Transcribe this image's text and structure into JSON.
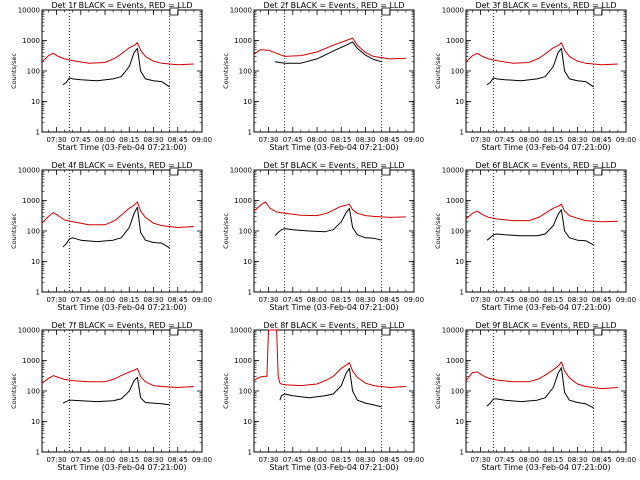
{
  "chart_data": [
    {
      "type": "line",
      "title": "Det 1f BLACK = Events, RED = LLD",
      "xlabel": "Start Time (03-Feb-04 07:21:00)",
      "ylabel": "Counts/sec",
      "yscale": "log",
      "ylim": [
        1,
        10000
      ],
      "x_ticks": [
        "07:30",
        "07:45",
        "08:00",
        "08:15",
        "08:30",
        "08:45",
        "09:00"
      ],
      "y_ticks": [
        "1",
        "10",
        "100",
        "1000",
        "10000"
      ],
      "markers": [
        "07:38",
        "08:40"
      ],
      "series": [
        {
          "color": "#cc0000",
          "x": [
            "07:21",
            "07:25",
            "07:28",
            "07:31",
            "07:35",
            "07:40",
            "07:50",
            "08:00",
            "08:06",
            "08:10",
            "08:15",
            "08:18",
            "08:20",
            "08:22",
            "08:25",
            "08:30",
            "08:35",
            "08:45",
            "08:55"
          ],
          "y": [
            200,
            320,
            380,
            300,
            250,
            220,
            180,
            190,
            260,
            360,
            580,
            680,
            850,
            480,
            300,
            210,
            180,
            160,
            170
          ]
        },
        {
          "color": "#000000",
          "x": [
            "07:34",
            "07:36",
            "07:38",
            "07:40",
            "07:45",
            "07:55",
            "08:05",
            "08:10",
            "08:15",
            "08:18",
            "08:20",
            "08:22",
            "08:25",
            "08:30",
            "08:35",
            "08:40"
          ],
          "y": [
            35,
            42,
            60,
            55,
            52,
            48,
            55,
            65,
            140,
            400,
            550,
            100,
            55,
            48,
            45,
            30
          ]
        }
      ]
    },
    {
      "type": "line",
      "title": "Det 2f BLACK = Events, RED = LLD",
      "xlabel": "Start Time (03-Feb-04 07:21:00)",
      "ylabel": "Counts/sec",
      "yscale": "log",
      "ylim": [
        1,
        10000
      ],
      "x_ticks": [
        "07:30",
        "07:45",
        "08:00",
        "08:15",
        "08:30",
        "08:45",
        "09:00"
      ],
      "y_ticks": [
        "1",
        "10",
        "100",
        "1000",
        "10000"
      ],
      "markers": [
        "07:40",
        "08:40"
      ],
      "series": [
        {
          "color": "#cc0000",
          "x": [
            "07:21",
            "07:25",
            "07:30",
            "07:35",
            "07:40",
            "07:50",
            "08:00",
            "08:10",
            "08:18",
            "08:22",
            "08:25",
            "08:30",
            "08:35",
            "08:45",
            "08:55"
          ],
          "y": [
            350,
            500,
            480,
            380,
            300,
            320,
            420,
            700,
            1000,
            1200,
            700,
            400,
            300,
            250,
            260
          ]
        },
        {
          "color": "#000000",
          "x": [
            "07:34",
            "07:40",
            "07:50",
            "08:00",
            "08:10",
            "08:18",
            "08:22",
            "08:25",
            "08:30",
            "08:35",
            "08:40"
          ],
          "y": [
            200,
            180,
            180,
            250,
            450,
            700,
            900,
            550,
            330,
            240,
            200
          ]
        }
      ]
    },
    {
      "type": "line",
      "title": "Det 3f BLACK = Events, RED = LLD",
      "xlabel": "Start Time (03-Feb-04 07:21:00)",
      "ylabel": "Counts/sec",
      "yscale": "log",
      "ylim": [
        1,
        10000
      ],
      "x_ticks": [
        "07:30",
        "07:45",
        "08:00",
        "08:15",
        "08:30",
        "08:45",
        "09:00"
      ],
      "y_ticks": [
        "1",
        "10",
        "100",
        "1000",
        "10000"
      ],
      "markers": [
        "07:38",
        "08:40"
      ],
      "series": [
        {
          "color": "#cc0000",
          "x": [
            "07:21",
            "07:25",
            "07:28",
            "07:31",
            "07:35",
            "07:40",
            "07:50",
            "08:00",
            "08:06",
            "08:10",
            "08:15",
            "08:18",
            "08:20",
            "08:22",
            "08:25",
            "08:30",
            "08:35",
            "08:45",
            "08:55"
          ],
          "y": [
            200,
            320,
            380,
            300,
            250,
            220,
            180,
            190,
            260,
            360,
            580,
            680,
            850,
            480,
            300,
            210,
            180,
            160,
            170
          ]
        },
        {
          "color": "#000000",
          "x": [
            "07:34",
            "07:36",
            "07:38",
            "07:40",
            "07:45",
            "07:55",
            "08:05",
            "08:10",
            "08:15",
            "08:18",
            "08:20",
            "08:22",
            "08:25",
            "08:30",
            "08:35",
            "08:40"
          ],
          "y": [
            35,
            42,
            60,
            55,
            52,
            48,
            55,
            65,
            140,
            400,
            550,
            100,
            55,
            48,
            45,
            30
          ]
        }
      ]
    },
    {
      "type": "line",
      "title": "Det 4f BLACK = Events, RED = LLD",
      "xlabel": "Start Time (03-Feb-04 07:21:00)",
      "ylabel": "Counts/sec",
      "yscale": "log",
      "ylim": [
        1,
        10000
      ],
      "x_ticks": [
        "07:30",
        "07:45",
        "08:00",
        "08:15",
        "08:30",
        "08:45",
        "09:00"
      ],
      "y_ticks": [
        "1",
        "10",
        "100",
        "1000",
        "10000"
      ],
      "markers": [
        "07:38",
        "08:40"
      ],
      "series": [
        {
          "color": "#cc0000",
          "x": [
            "07:21",
            "07:25",
            "07:28",
            "07:31",
            "07:35",
            "07:40",
            "07:50",
            "08:00",
            "08:06",
            "08:10",
            "08:15",
            "08:18",
            "08:20",
            "08:22",
            "08:25",
            "08:30",
            "08:35",
            "08:45",
            "08:55"
          ],
          "y": [
            180,
            300,
            400,
            320,
            230,
            200,
            160,
            160,
            220,
            330,
            560,
            700,
            900,
            450,
            280,
            180,
            150,
            130,
            140
          ]
        },
        {
          "color": "#000000",
          "x": [
            "07:34",
            "07:36",
            "07:38",
            "07:40",
            "07:45",
            "07:55",
            "08:05",
            "08:10",
            "08:15",
            "08:18",
            "08:20",
            "08:22",
            "08:25",
            "08:30",
            "08:35",
            "08:40"
          ],
          "y": [
            30,
            38,
            55,
            60,
            50,
            45,
            50,
            60,
            130,
            380,
            600,
            90,
            50,
            42,
            40,
            28
          ]
        }
      ]
    },
    {
      "type": "line",
      "title": "Det 5f BLACK = Events, RED = LLD",
      "xlabel": "Start Time (03-Feb-04 07:21:00)",
      "ylabel": "Counts/sec",
      "yscale": "log",
      "ylim": [
        1,
        10000
      ],
      "x_ticks": [
        "07:30",
        "07:45",
        "08:00",
        "08:15",
        "08:30",
        "08:45",
        "09:00"
      ],
      "y_ticks": [
        "1",
        "10",
        "100",
        "1000",
        "10000"
      ],
      "markers": [
        "07:40",
        "08:40"
      ],
      "series": [
        {
          "color": "#cc0000",
          "x": [
            "07:21",
            "07:25",
            "07:28",
            "07:31",
            "07:35",
            "07:40",
            "07:50",
            "08:00",
            "08:06",
            "08:10",
            "08:15",
            "08:18",
            "08:20",
            "08:22",
            "08:25",
            "08:30",
            "08:35",
            "08:45",
            "08:55"
          ],
          "y": [
            450,
            700,
            900,
            550,
            420,
            380,
            330,
            320,
            380,
            480,
            650,
            700,
            750,
            500,
            380,
            320,
            300,
            280,
            290
          ]
        },
        {
          "color": "#000000",
          "x": [
            "07:34",
            "07:36",
            "07:38",
            "07:40",
            "07:45",
            "07:55",
            "08:05",
            "08:10",
            "08:15",
            "08:18",
            "08:20",
            "08:22",
            "08:25",
            "08:30",
            "08:35",
            "08:40"
          ],
          "y": [
            70,
            90,
            110,
            120,
            110,
            100,
            95,
            110,
            200,
            400,
            550,
            130,
            75,
            60,
            58,
            50
          ]
        }
      ]
    },
    {
      "type": "line",
      "title": "Det 6f BLACK = Events, RED = LLD",
      "xlabel": "Start Time (03-Feb-04 07:21:00)",
      "ylabel": "Counts/sec",
      "yscale": "log",
      "ylim": [
        1,
        10000
      ],
      "x_ticks": [
        "07:30",
        "07:45",
        "08:00",
        "08:15",
        "08:30",
        "08:45",
        "09:00"
      ],
      "y_ticks": [
        "1",
        "10",
        "100",
        "1000",
        "10000"
      ],
      "markers": [
        "07:38",
        "08:40"
      ],
      "series": [
        {
          "color": "#cc0000",
          "x": [
            "07:21",
            "07:25",
            "07:28",
            "07:31",
            "07:35",
            "07:40",
            "07:50",
            "08:00",
            "08:06",
            "08:10",
            "08:15",
            "08:18",
            "08:20",
            "08:22",
            "08:25",
            "08:30",
            "08:35",
            "08:45",
            "08:55"
          ],
          "y": [
            250,
            380,
            450,
            350,
            280,
            250,
            220,
            220,
            280,
            380,
            560,
            650,
            750,
            450,
            320,
            260,
            220,
            200,
            210
          ]
        },
        {
          "color": "#000000",
          "x": [
            "07:34",
            "07:36",
            "07:38",
            "07:40",
            "07:45",
            "07:55",
            "08:05",
            "08:10",
            "08:15",
            "08:18",
            "08:20",
            "08:22",
            "08:25",
            "08:30",
            "08:35",
            "08:40"
          ],
          "y": [
            50,
            60,
            75,
            80,
            75,
            70,
            70,
            80,
            150,
            350,
            500,
            100,
            60,
            50,
            48,
            35
          ]
        }
      ]
    },
    {
      "type": "line",
      "title": "Det 7f BLACK = Events, RED = LLD",
      "xlabel": "Start Time (03-Feb-04 07:21:00)",
      "ylabel": "Counts/sec",
      "yscale": "log",
      "ylim": [
        1,
        10000
      ],
      "x_ticks": [
        "07:30",
        "07:45",
        "08:00",
        "08:15",
        "08:30",
        "08:45",
        "09:00"
      ],
      "y_ticks": [
        "1",
        "10",
        "100",
        "1000",
        "10000"
      ],
      "markers": [
        "07:38",
        "08:40"
      ],
      "series": [
        {
          "color": "#cc0000",
          "x": [
            "07:21",
            "07:25",
            "07:28",
            "07:31",
            "07:35",
            "07:40",
            "07:50",
            "08:00",
            "08:06",
            "08:10",
            "08:15",
            "08:18",
            "08:20",
            "08:22",
            "08:25",
            "08:30",
            "08:35",
            "08:45",
            "08:55"
          ],
          "y": [
            180,
            260,
            320,
            280,
            240,
            220,
            200,
            200,
            250,
            320,
            420,
            480,
            550,
            300,
            200,
            150,
            140,
            130,
            140
          ]
        },
        {
          "color": "#000000",
          "x": [
            "07:34",
            "07:36",
            "07:38",
            "07:40",
            "07:45",
            "07:55",
            "08:05",
            "08:10",
            "08:15",
            "08:18",
            "08:20",
            "08:22",
            "08:25",
            "08:30",
            "08:35",
            "08:40"
          ],
          "y": [
            40,
            45,
            50,
            50,
            48,
            45,
            48,
            55,
            100,
            220,
            280,
            60,
            42,
            40,
            38,
            35
          ]
        }
      ]
    },
    {
      "type": "line",
      "title": "Det 8f BLACK = Events, RED = LLD",
      "xlabel": "Start Time (03-Feb-04 07:21:00)",
      "ylabel": "Counts/sec",
      "yscale": "log",
      "ylim": [
        1,
        10000
      ],
      "x_ticks": [
        "07:30",
        "07:45",
        "08:00",
        "08:15",
        "08:30",
        "08:45",
        "09:00"
      ],
      "y_ticks": [
        "1",
        "10",
        "100",
        "1000",
        "10000"
      ],
      "markers": [
        "07:40",
        "08:40"
      ],
      "series": [
        {
          "color": "#cc0000",
          "x": [
            "07:21",
            "07:24",
            "07:27",
            "07:29",
            "07:30",
            "07:31",
            "07:34",
            "07:35",
            "07:36",
            "07:37",
            "07:38",
            "07:40",
            "07:50",
            "08:00",
            "08:06",
            "08:10",
            "08:15",
            "08:18",
            "08:20",
            "08:22",
            "08:25",
            "08:30",
            "08:35",
            "08:45",
            "08:55"
          ],
          "y": [
            220,
            280,
            300,
            300,
            10000,
            10000,
            10000,
            10000,
            300,
            180,
            170,
            160,
            150,
            170,
            230,
            300,
            550,
            700,
            850,
            450,
            280,
            180,
            150,
            130,
            140
          ]
        },
        {
          "color": "#000000",
          "x": [
            "07:37",
            "07:38",
            "07:40",
            "07:45",
            "07:55",
            "08:05",
            "08:10",
            "08:15",
            "08:18",
            "08:20",
            "08:22",
            "08:25",
            "08:30",
            "08:35",
            "08:40"
          ],
          "y": [
            50,
            70,
            80,
            70,
            60,
            70,
            80,
            150,
            380,
            550,
            100,
            50,
            40,
            35,
            30
          ]
        }
      ]
    },
    {
      "type": "line",
      "title": "Det 9f BLACK = Events, RED = LLD",
      "xlabel": "Start Time (03-Feb-04 07:21:00)",
      "ylabel": "Counts/sec",
      "yscale": "log",
      "ylim": [
        1,
        10000
      ],
      "x_ticks": [
        "07:30",
        "07:45",
        "08:00",
        "08:15",
        "08:30",
        "08:45",
        "09:00"
      ],
      "y_ticks": [
        "1",
        "10",
        "100",
        "1000",
        "10000"
      ],
      "markers": [
        "07:38",
        "08:40"
      ],
      "series": [
        {
          "color": "#cc0000",
          "x": [
            "07:21",
            "07:25",
            "07:28",
            "07:31",
            "07:35",
            "07:40",
            "07:50",
            "08:00",
            "08:06",
            "08:10",
            "08:15",
            "08:18",
            "08:20",
            "08:22",
            "08:25",
            "08:30",
            "08:35",
            "08:45",
            "08:55"
          ],
          "y": [
            220,
            400,
            420,
            330,
            260,
            230,
            200,
            200,
            250,
            330,
            500,
            650,
            900,
            450,
            270,
            170,
            140,
            120,
            130
          ]
        },
        {
          "color": "#000000",
          "x": [
            "07:34",
            "07:36",
            "07:38",
            "07:40",
            "07:45",
            "07:55",
            "08:05",
            "08:10",
            "08:15",
            "08:18",
            "08:20",
            "08:22",
            "08:25",
            "08:30",
            "08:35",
            "08:40"
          ],
          "y": [
            32,
            40,
            55,
            55,
            50,
            45,
            50,
            60,
            130,
            380,
            580,
            90,
            50,
            42,
            38,
            28
          ]
        }
      ]
    }
  ]
}
